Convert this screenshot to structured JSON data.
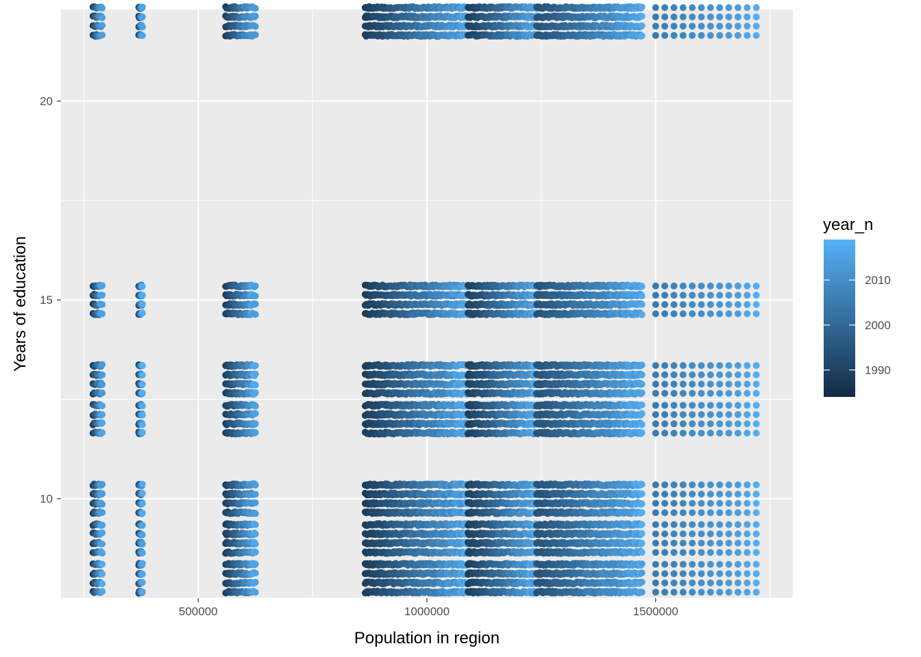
{
  "chart_data": {
    "type": "scatter",
    "title": "",
    "xlabel": "Population in region",
    "ylabel": "Years of education",
    "xlim": [
      200000,
      1800000
    ],
    "ylim": [
      7.5,
      22.3
    ],
    "x_ticks": [
      500000,
      1000000,
      1500000
    ],
    "x_tick_labels": [
      "500000",
      "1000000",
      "1500000"
    ],
    "y_ticks": [
      10,
      15,
      20
    ],
    "y_tick_labels": [
      "10",
      "15",
      "20"
    ],
    "grid": true,
    "background": "#ebebeb",
    "legend": {
      "title": "year_n",
      "position": "right",
      "type": "colorbar",
      "range": [
        1984,
        2019
      ],
      "low_color": "#132b43",
      "high_color": "#56b1f7",
      "breaks": [
        1990,
        2000,
        2010
      ],
      "break_labels": [
        "1990",
        "2000",
        "2010"
      ]
    },
    "education_levels": [
      8,
      9,
      10,
      12,
      13,
      15,
      22
    ],
    "point_jitter_years": 0.35,
    "region_bands": [
      {
        "x_min": 270000,
        "x_max": 290000,
        "years": [
          1984,
          2019
        ]
      },
      {
        "x_min": 370000,
        "x_max": 378000,
        "years": [
          1984,
          2019
        ]
      },
      {
        "x_min": 560000,
        "x_max": 625000,
        "years": [
          1984,
          2019
        ]
      },
      {
        "x_min": 865000,
        "x_max": 1090000,
        "years": [
          1984,
          2019
        ]
      },
      {
        "x_min": 1090000,
        "x_max": 1240000,
        "years": [
          1984,
          2019
        ]
      },
      {
        "x_min": 1240000,
        "x_max": 1470000,
        "years": [
          1990,
          2019
        ]
      }
    ],
    "sparse_regions": [
      {
        "x": 1500000,
        "year": 2005
      },
      {
        "x": 1520000,
        "year": 2006
      },
      {
        "x": 1540000,
        "year": 2007
      },
      {
        "x": 1560000,
        "year": 2008
      },
      {
        "x": 1580000,
        "year": 2009
      },
      {
        "x": 1600000,
        "year": 2010
      },
      {
        "x": 1620000,
        "year": 2011
      },
      {
        "x": 1640000,
        "year": 2012
      },
      {
        "x": 1660000,
        "year": 2013
      },
      {
        "x": 1680000,
        "year": 2014
      },
      {
        "x": 1700000,
        "year": 2016
      },
      {
        "x": 1720000,
        "year": 2018
      }
    ]
  }
}
